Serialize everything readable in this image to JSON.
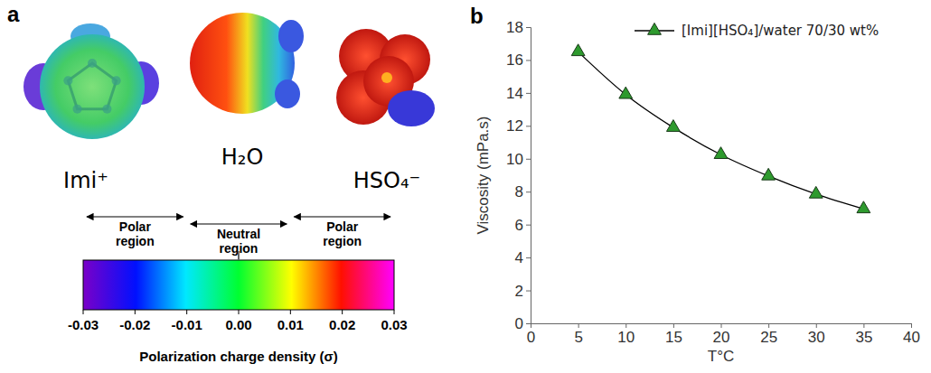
{
  "figure": {
    "panel_labels": [
      "a",
      "b"
    ],
    "molecules": [
      {
        "label": "Imi⁺"
      },
      {
        "label": "H₂O"
      },
      {
        "label": "HSO₄⁻"
      }
    ],
    "colorbar": {
      "regions": [
        "Polar region",
        "Neutral region",
        "Polar region"
      ],
      "range": [
        -0.03,
        0.03
      ],
      "ticks": [
        -0.03,
        -0.02,
        -0.01,
        {
          "value": 0,
          "label": "0.00"
        },
        0.01,
        0.02,
        0.03
      ],
      "label": "Polarization charge density (σ)"
    }
  },
  "chart_data": {
    "type": "line",
    "x_label": "T°C",
    "y_label": "Viscosity (mPa.s)",
    "x": [
      5,
      10,
      15,
      20,
      25,
      30,
      35
    ],
    "series": [
      {
        "name": "[Imi][HSO₄]/water 70/30 wt%",
        "color": "#2e9a2e",
        "marker": "triangle",
        "line_style": "solid",
        "values": [
          16.5,
          13.9,
          11.9,
          10.25,
          8.95,
          7.85,
          6.95
        ]
      }
    ],
    "xlim": [
      0,
      40
    ],
    "xticks": [
      0,
      5,
      10,
      15,
      20,
      25,
      30,
      35,
      40
    ],
    "ylim": [
      0,
      18
    ],
    "yticks": [
      0,
      2,
      4,
      6,
      8,
      10,
      12,
      14,
      16,
      18
    ],
    "grid": false,
    "legend": "top-right"
  }
}
